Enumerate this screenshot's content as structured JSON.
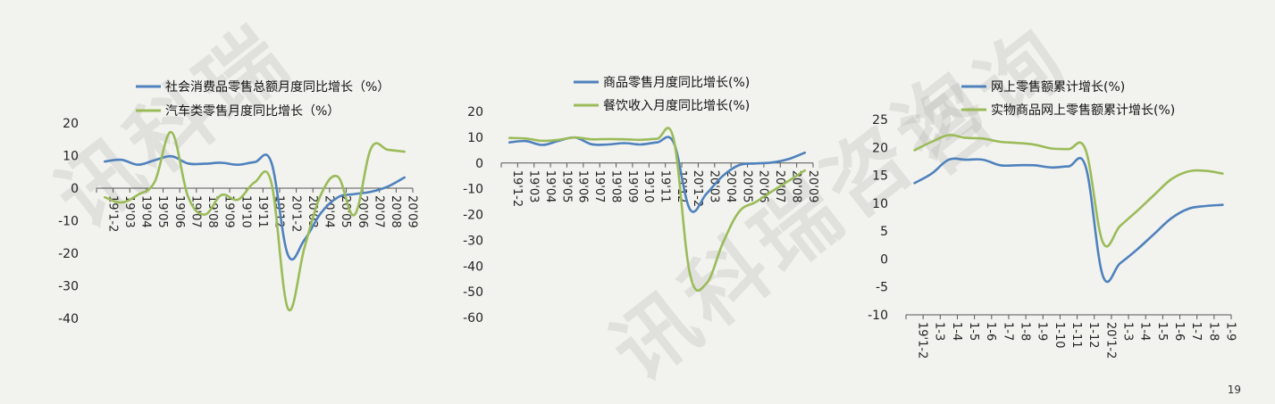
{
  "page_number": "19",
  "chart_data": [
    {
      "type": "line",
      "x": [
        "19'1-2",
        "19'03",
        "19'04",
        "19'05",
        "19'06",
        "19'07",
        "19'08",
        "19'09",
        "19'10",
        "19'11",
        "19'12",
        "20'1-2",
        "20'03",
        "20'04",
        "20'05",
        "20'06",
        "20'07",
        "20'08",
        "20'09"
      ],
      "ylim": [
        -40,
        20
      ],
      "yticks": [
        20,
        10,
        0,
        -10,
        -20,
        -30,
        -40
      ],
      "legend": "top",
      "series": [
        {
          "name": "社会消费品零售总额月度同比增长（%）",
          "color": "#4f81bd",
          "values": [
            8.2,
            8.7,
            7.2,
            8.6,
            9.8,
            7.6,
            7.5,
            7.8,
            7.2,
            8.0,
            8.0,
            -20.5,
            -15.8,
            -7.5,
            -2.8,
            -1.8,
            -1.1,
            0.5,
            3.3
          ]
        },
        {
          "name": "汽车类零售月度同比增长（%）",
          "color": "#9bbb59",
          "values": [
            -2.8,
            -4.4,
            -2.0,
            2.0,
            17.2,
            -2.6,
            -8.1,
            -2.1,
            -3.5,
            1.8,
            1.8,
            -37.0,
            -18.1,
            -1.8,
            3.5,
            -8.2,
            12.3,
            11.8,
            11.2
          ]
        }
      ]
    },
    {
      "type": "line",
      "x": [
        "19'1-2",
        "19'03",
        "19'04",
        "19'05",
        "19'06",
        "19'07",
        "19'08",
        "19'09",
        "19'10",
        "19'11",
        "19'12",
        "20'1-2",
        "20'03",
        "20'04",
        "20'05",
        "20'06",
        "20'07",
        "20'08",
        "20'09"
      ],
      "ylim": [
        -60,
        20
      ],
      "yticks": [
        20,
        10,
        0,
        -10,
        -20,
        -30,
        -40,
        -50,
        -60
      ],
      "legend": "top",
      "series": [
        {
          "name": "商品零售月度同比增长(%)",
          "color": "#4f81bd",
          "values": [
            8.0,
            8.5,
            7.0,
            8.6,
            9.9,
            7.3,
            7.2,
            7.7,
            7.2,
            8.0,
            8.0,
            -18.0,
            -12.0,
            -5.0,
            -0.8,
            -0.2,
            0.2,
            1.5,
            4.0
          ]
        },
        {
          "name": "餐饮收入月度同比增长(%)",
          "color": "#9bbb59",
          "values": [
            9.7,
            9.5,
            8.6,
            9.0,
            9.9,
            9.2,
            9.3,
            9.2,
            9.0,
            9.4,
            9.4,
            -43.1,
            -46.8,
            -31.1,
            -18.9,
            -15.2,
            -11.0,
            -7.0,
            -2.9
          ]
        }
      ]
    },
    {
      "type": "line",
      "x": [
        "19'1-2",
        "1-3",
        "1-4",
        "1-5",
        "1-6",
        "1-7",
        "1-8",
        "1-9",
        "1-10",
        "1-11",
        "1-12",
        "20'1-2",
        "1-3",
        "1-4",
        "1-5",
        "1-6",
        "1-7",
        "1-8",
        "1-9"
      ],
      "ylim": [
        -10,
        25
      ],
      "yticks": [
        25,
        20,
        15,
        10,
        5,
        0,
        -5,
        -10
      ],
      "legend": "top",
      "series": [
        {
          "name": "网上零售额累计增长(%)",
          "color": "#4f81bd",
          "values": [
            13.6,
            15.3,
            17.8,
            17.8,
            17.8,
            16.8,
            16.8,
            16.8,
            16.4,
            16.6,
            16.5,
            -3.0,
            -0.8,
            1.7,
            4.5,
            7.3,
            9.0,
            9.5,
            9.7
          ]
        },
        {
          "name": "实物商品网上零售额累计增长(%)",
          "color": "#9bbb59",
          "values": [
            19.5,
            21.0,
            22.2,
            21.7,
            21.6,
            21.0,
            20.8,
            20.5,
            19.8,
            19.7,
            19.5,
            3.0,
            5.9,
            8.6,
            11.5,
            14.3,
            15.7,
            15.8,
            15.3
          ]
        }
      ]
    }
  ]
}
